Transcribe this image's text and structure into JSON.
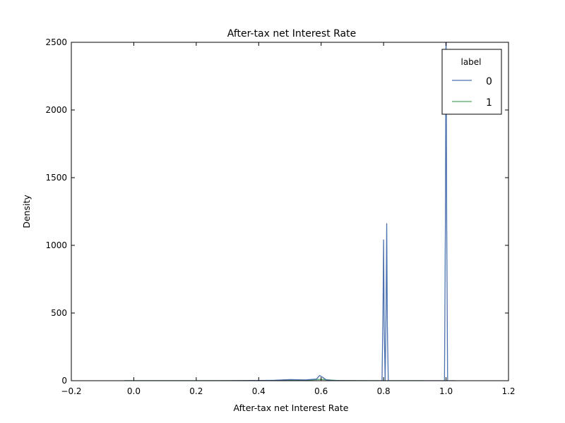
{
  "chart_data": {
    "type": "line",
    "title": "After-tax net Interest Rate",
    "xlabel": "After-tax net Interest Rate",
    "ylabel": "Density",
    "xlim": [
      -0.2,
      1.2
    ],
    "ylim": [
      0,
      2500
    ],
    "xticks": [
      "−0.2",
      "0.0",
      "0.2",
      "0.4",
      "0.6",
      "0.8",
      "1.0",
      "1.2"
    ],
    "xtick_values": [
      -0.2,
      0.0,
      0.2,
      0.4,
      0.6,
      0.8,
      1.0,
      1.2
    ],
    "yticks": [
      "0",
      "500",
      "1000",
      "1500",
      "2000",
      "2500"
    ],
    "ytick_values": [
      0,
      500,
      1000,
      1500,
      2000,
      2500
    ],
    "grid": false,
    "legend": {
      "title": "label",
      "placement": "top-right"
    },
    "series": [
      {
        "name": "0",
        "color": "#4c72b0",
        "x": [
          -0.03,
          0.3,
          0.45,
          0.5,
          0.55,
          0.585,
          0.595,
          0.605,
          0.615,
          0.63,
          0.7,
          0.795,
          0.798,
          0.8,
          0.802,
          0.805,
          0.808,
          0.81,
          0.812,
          0.815,
          0.9,
          0.995,
          0.998,
          1.0,
          1.002,
          1.005,
          1.03
        ],
        "y": [
          0,
          0,
          3,
          8,
          6,
          12,
          38,
          25,
          8,
          2,
          0,
          0,
          500,
          1040,
          400,
          0,
          560,
          1160,
          400,
          0,
          0,
          0,
          1200,
          2700,
          1200,
          0,
          0
        ]
      },
      {
        "name": "1",
        "color": "#55a868",
        "x": [
          -0.03,
          0.2,
          0.45,
          0.5,
          0.55,
          0.6,
          0.65,
          0.7,
          0.8,
          0.93
        ],
        "y": [
          0,
          0,
          1,
          3,
          4,
          10,
          2,
          1,
          0,
          0
        ]
      }
    ]
  }
}
